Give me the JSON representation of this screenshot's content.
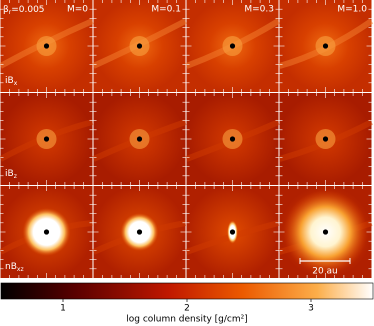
{
  "chart_data": {
    "type": "image-grid",
    "beta_symbol": "β",
    "beta_subscript": "r",
    "beta_value": "=0.005",
    "column_labels": [
      "M=0",
      "M=0.1",
      "M=0.3",
      "M=1.0"
    ],
    "row_labels": [
      {
        "text": "iB",
        "subscript": "x"
      },
      {
        "text": "iB",
        "subscript": "z"
      },
      {
        "text": "nB",
        "subscript": "xz"
      }
    ],
    "scale_bar_label": "20 au",
    "colorbar": {
      "label": "log column density [g/cm²]",
      "xlim": [
        0.5,
        3.5
      ],
      "xticks": [
        1,
        2,
        3
      ]
    }
  }
}
